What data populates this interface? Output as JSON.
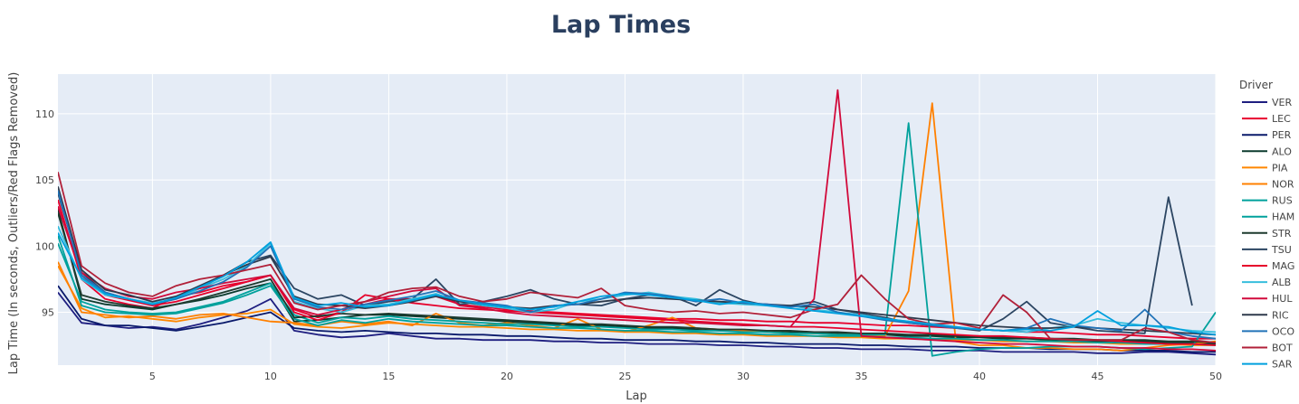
{
  "chart_data": {
    "type": "line",
    "title": "Lap Times",
    "xlabel": "Lap",
    "ylabel": "Lap Time (In seconds, Outliers/Red Flags Removed)",
    "xlim": [
      1,
      50
    ],
    "ylim": [
      91,
      113
    ],
    "xticks": [
      5,
      10,
      15,
      20,
      25,
      30,
      35,
      40,
      45,
      50
    ],
    "yticks": [
      95,
      100,
      105,
      110
    ],
    "grid": true,
    "legend_title": "Driver",
    "legend_position": "right",
    "series": [
      {
        "name": "VER",
        "color": "#1e1e80",
        "values": [
          96.5,
          94.2,
          94.0,
          93.8,
          93.9,
          93.7,
          94.1,
          94.6,
          95.1,
          96.0,
          93.6,
          93.3,
          93.1,
          93.2,
          93.4,
          93.2,
          93.0,
          93.0,
          92.9,
          92.9,
          92.9,
          92.8,
          92.8,
          92.7,
          92.7,
          92.6,
          92.6,
          92.6,
          92.5,
          92.5,
          92.4,
          92.4,
          92.3,
          92.3,
          92.2,
          92.2,
          92.2,
          92.1,
          92.1,
          92.1,
          92.0,
          92.0,
          92.0,
          92.0,
          91.9,
          91.9,
          92.0,
          92.0,
          91.9,
          91.8
        ]
      },
      {
        "name": "LEC",
        "color": "#e8002d",
        "values": [
          103.5,
          97.5,
          96.0,
          95.6,
          95.3,
          96.2,
          96.5,
          97.0,
          97.3,
          97.8,
          95.2,
          94.6,
          95.0,
          95.6,
          96.0,
          96.0,
          96.2,
          95.6,
          95.4,
          95.2,
          95.1,
          95.0,
          94.9,
          94.8,
          94.7,
          94.6,
          94.5,
          94.5,
          94.4,
          94.4,
          94.3,
          94.3,
          94.2,
          94.2,
          94.1,
          94.0,
          94.0,
          93.9,
          93.8,
          93.7,
          93.6,
          93.5,
          93.5,
          93.4,
          93.3,
          93.3,
          93.2,
          93.1,
          93.0,
          93.0
        ]
      },
      {
        "name": "PER",
        "color": "#0a1a6b",
        "values": [
          97.0,
          94.5,
          94.0,
          94.0,
          93.8,
          93.6,
          93.9,
          94.2,
          94.6,
          95.0,
          93.8,
          93.6,
          93.5,
          93.6,
          93.5,
          93.4,
          93.4,
          93.3,
          93.3,
          93.2,
          93.2,
          93.1,
          93.0,
          93.0,
          92.9,
          92.9,
          92.9,
          92.8,
          92.8,
          92.7,
          92.7,
          92.6,
          92.6,
          92.6,
          92.5,
          92.5,
          92.4,
          92.4,
          92.4,
          92.3,
          92.3,
          92.3,
          92.2,
          92.2,
          92.2,
          92.1,
          92.1,
          92.1,
          92.0,
          92.0
        ]
      },
      {
        "name": "ALO",
        "color": "#0c3b2e",
        "values": [
          102.8,
          96.0,
          95.6,
          95.4,
          95.2,
          95.6,
          95.9,
          96.3,
          96.8,
          97.2,
          94.3,
          94.4,
          94.6,
          94.8,
          94.8,
          94.7,
          94.6,
          94.5,
          94.4,
          94.3,
          94.2,
          94.1,
          94.0,
          94.0,
          93.9,
          93.8,
          93.8,
          93.7,
          93.6,
          93.6,
          93.5,
          93.5,
          93.4,
          93.4,
          93.3,
          93.3,
          93.2,
          93.2,
          93.1,
          93.1,
          93.0,
          93.0,
          92.9,
          92.9,
          92.8,
          92.8,
          92.8,
          92.7,
          92.7,
          92.6
        ]
      },
      {
        "name": "PIA",
        "color": "#ff8700",
        "values": [
          98.5,
          95.3,
          94.6,
          94.7,
          94.5,
          94.3,
          94.6,
          94.8,
          94.9,
          95.2,
          94.1,
          93.9,
          93.8,
          94.0,
          94.2,
          94.1,
          94.0,
          93.9,
          93.9,
          93.8,
          93.7,
          93.7,
          93.6,
          93.6,
          93.5,
          93.5,
          93.4,
          93.4,
          93.3,
          93.3,
          93.2,
          93.2,
          93.2,
          93.1,
          93.1,
          93.0,
          93.0,
          93.0,
          92.9,
          92.9,
          92.8,
          92.8,
          92.8,
          92.7,
          92.7,
          92.6,
          92.6,
          92.6,
          92.5,
          92.5
        ]
      },
      {
        "name": "NOR",
        "color": "#ff8000",
        "values": [
          98.8,
          95.0,
          94.8,
          94.6,
          94.7,
          94.5,
          94.8,
          94.9,
          94.6,
          94.3,
          94.2,
          94.0,
          94.3,
          94.1,
          94.3,
          94.0,
          94.9,
          94.2,
          94.0,
          94.2,
          94.0,
          93.8,
          94.5,
          93.7,
          93.5,
          94.0,
          94.6,
          93.8,
          93.7,
          93.6,
          93.5,
          93.4,
          93.4,
          93.3,
          93.3,
          93.2,
          96.6,
          110.8,
          92.8,
          92.5,
          92.5,
          92.3,
          92.3,
          92.2,
          92.2,
          92.1,
          92.3,
          92.5,
          92.6,
          92.8
        ]
      },
      {
        "name": "RUS",
        "color": "#00a19c",
        "values": [
          100.8,
          95.5,
          95.0,
          94.9,
          94.8,
          94.9,
          95.3,
          95.7,
          96.3,
          97.0,
          94.5,
          94.0,
          94.4,
          94.2,
          94.5,
          94.3,
          94.2,
          94.1,
          94.0,
          94.0,
          93.9,
          93.8,
          93.8,
          93.7,
          93.6,
          93.6,
          93.5,
          93.5,
          93.4,
          93.4,
          93.3,
          93.3,
          93.2,
          93.2,
          93.2,
          93.1,
          93.1,
          93.0,
          93.0,
          92.9,
          92.9,
          92.8,
          92.8,
          92.8,
          92.7,
          92.7,
          92.6,
          92.6,
          92.6,
          92.5
        ]
      },
      {
        "name": "HAM",
        "color": "#00a19c",
        "values": [
          100.2,
          95.8,
          95.2,
          95.0,
          94.9,
          95.0,
          95.4,
          95.8,
          96.5,
          97.2,
          94.8,
          94.2,
          94.6,
          94.5,
          94.7,
          94.5,
          94.4,
          94.3,
          94.2,
          94.1,
          94.1,
          94.0,
          93.9,
          93.9,
          93.8,
          93.7,
          93.7,
          93.6,
          93.6,
          93.5,
          93.5,
          93.4,
          93.4,
          93.3,
          93.3,
          93.3,
          109.3,
          91.7,
          92.0,
          92.2,
          92.3,
          92.3,
          92.4,
          92.4,
          92.4,
          92.3,
          92.2,
          92.3,
          92.4,
          95.0
        ]
      },
      {
        "name": "STR",
        "color": "#1d3a2e",
        "values": [
          102.5,
          96.3,
          95.8,
          95.5,
          95.3,
          95.6,
          96.0,
          96.5,
          97.0,
          97.5,
          94.6,
          94.7,
          94.9,
          94.8,
          94.9,
          94.8,
          94.7,
          94.6,
          94.5,
          94.4,
          94.3,
          94.2,
          94.1,
          94.1,
          94.0,
          93.9,
          93.9,
          93.8,
          93.7,
          93.7,
          93.6,
          93.6,
          93.5,
          93.5,
          93.4,
          93.4,
          93.3,
          93.3,
          93.2,
          93.2,
          93.1,
          93.1,
          93.0,
          93.0,
          92.9,
          92.9,
          92.9,
          92.8,
          92.8,
          92.7
        ]
      },
      {
        "name": "TSU",
        "color": "#2b4562",
        "values": [
          104.0,
          98.0,
          96.5,
          96.0,
          95.6,
          96.0,
          96.8,
          97.8,
          98.8,
          99.3,
          96.8,
          96.0,
          96.3,
          95.5,
          95.8,
          96.0,
          97.5,
          95.6,
          95.8,
          96.2,
          96.7,
          96.0,
          95.6,
          95.5,
          96.0,
          96.3,
          96.2,
          95.5,
          96.7,
          95.9,
          95.5,
          95.5,
          95.8,
          95.2,
          94.9,
          94.6,
          94.2,
          94.0,
          93.8,
          93.6,
          94.5,
          95.8,
          94.2,
          93.9,
          93.6,
          93.5,
          93.4,
          103.7,
          95.5,
          null
        ]
      },
      {
        "name": "MAG",
        "color": "#e6002b",
        "values": [
          103.0,
          97.8,
          96.3,
          95.9,
          95.5,
          95.8,
          96.3,
          96.8,
          97.3,
          97.8,
          95.0,
          94.4,
          95.0,
          96.3,
          96.0,
          95.7,
          95.5,
          95.3,
          95.2,
          95.1,
          95.0,
          94.9,
          94.8,
          94.7,
          94.6,
          94.5,
          94.4,
          94.3,
          94.2,
          94.1,
          94.0,
          93.9,
          93.9,
          93.8,
          93.7,
          93.6,
          93.5,
          93.4,
          93.3,
          93.2,
          93.2,
          93.1,
          93.0,
          92.9,
          92.9,
          92.8,
          92.7,
          92.6,
          92.6,
          92.5
        ]
      },
      {
        "name": "ALB",
        "color": "#37bedd",
        "values": [
          101.5,
          97.5,
          96.3,
          96.0,
          95.7,
          96.0,
          96.8,
          97.5,
          98.5,
          100.2,
          95.8,
          95.3,
          95.0,
          95.5,
          95.6,
          96.0,
          96.4,
          95.8,
          95.5,
          95.3,
          95.0,
          95.2,
          95.8,
          96.0,
          96.3,
          96.5,
          96.2,
          96.0,
          95.7,
          95.6,
          95.5,
          95.5,
          95.2,
          95.0,
          94.8,
          94.5,
          94.3,
          94.1,
          93.9,
          93.7,
          93.6,
          93.5,
          93.8,
          94.0,
          94.5,
          94.2,
          94.0,
          93.8,
          93.6,
          93.5
        ]
      },
      {
        "name": "HUL",
        "color": "#d10a3b",
        "values": [
          103.0,
          98.0,
          96.8,
          96.2,
          96.0,
          96.5,
          96.8,
          97.2,
          97.5,
          97.8,
          95.3,
          94.8,
          95.2,
          95.8,
          96.2,
          96.6,
          96.8,
          95.5,
          95.3,
          95.0,
          94.8,
          94.7,
          94.6,
          94.5,
          94.4,
          94.3,
          94.2,
          94.2,
          94.1,
          94.0,
          94.0,
          93.9,
          96.0,
          111.8,
          93.2,
          93.1,
          93.0,
          92.9,
          92.8,
          92.7,
          92.6,
          92.6,
          92.5,
          92.4,
          92.4,
          92.3,
          92.3,
          92.2,
          92.2,
          92.1
        ]
      },
      {
        "name": "RIC",
        "color": "#2e3a4c",
        "values": [
          104.5,
          98.2,
          96.7,
          96.3,
          95.8,
          96.2,
          97.0,
          97.8,
          98.6,
          99.2,
          96.2,
          95.6,
          95.5,
          95.3,
          95.5,
          95.8,
          96.2,
          95.8,
          95.6,
          95.4,
          95.3,
          95.5,
          95.6,
          95.8,
          96.0,
          96.1,
          96.0,
          95.9,
          95.8,
          95.7,
          95.6,
          95.5,
          95.4,
          95.2,
          95.0,
          94.8,
          94.6,
          94.4,
          94.2,
          94.0,
          93.9,
          93.8,
          93.8,
          93.9,
          93.8,
          93.7,
          93.6,
          93.5,
          93.4,
          93.3
        ]
      },
      {
        "name": "OCO",
        "color": "#2173b8",
        "values": [
          104.2,
          97.8,
          96.5,
          96.0,
          95.6,
          96.0,
          96.6,
          97.3,
          98.4,
          100.0,
          96.0,
          95.4,
          95.2,
          95.6,
          95.9,
          96.2,
          96.6,
          95.9,
          95.7,
          95.5,
          95.0,
          95.5,
          95.6,
          96.0,
          96.5,
          96.4,
          96.2,
          95.8,
          96.0,
          95.7,
          95.6,
          95.4,
          95.6,
          95.0,
          94.7,
          94.4,
          94.2,
          94.0,
          93.8,
          93.7,
          93.6,
          93.8,
          94.5,
          94.0,
          93.8,
          93.6,
          95.2,
          93.5,
          93.2,
          93.0
        ]
      },
      {
        "name": "BOT",
        "color": "#b12039",
        "values": [
          105.6,
          98.5,
          97.2,
          96.5,
          96.2,
          97.0,
          97.5,
          97.8,
          98.2,
          98.6,
          95.7,
          95.2,
          95.5,
          95.8,
          96.5,
          96.8,
          96.9,
          96.2,
          95.8,
          96.0,
          96.5,
          96.3,
          96.1,
          96.8,
          95.5,
          95.2,
          95.0,
          95.1,
          94.9,
          95.0,
          94.8,
          94.6,
          95.2,
          95.6,
          97.8,
          96.0,
          94.5,
          94.1,
          94.2,
          93.8,
          96.3,
          95.0,
          93.0,
          92.9,
          92.9,
          92.9,
          93.8,
          93.5,
          92.9,
          92.7
        ]
      },
      {
        "name": "SAR",
        "color": "#00a0de",
        "values": [
          101.0,
          97.6,
          96.4,
          96.0,
          95.6,
          96.1,
          96.9,
          97.7,
          98.8,
          100.3,
          96.1,
          95.5,
          95.7,
          95.4,
          95.5,
          95.9,
          96.3,
          95.9,
          95.6,
          95.4,
          95.2,
          95.4,
          95.8,
          96.2,
          96.4,
          96.3,
          96.1,
          95.9,
          95.6,
          95.8,
          95.5,
          95.3,
          95.1,
          94.9,
          94.7,
          94.5,
          94.3,
          94.1,
          93.9,
          93.7,
          93.6,
          93.7,
          93.6,
          93.9,
          95.1,
          94.0,
          94.0,
          93.9,
          93.5,
          93.3
        ]
      }
    ]
  }
}
